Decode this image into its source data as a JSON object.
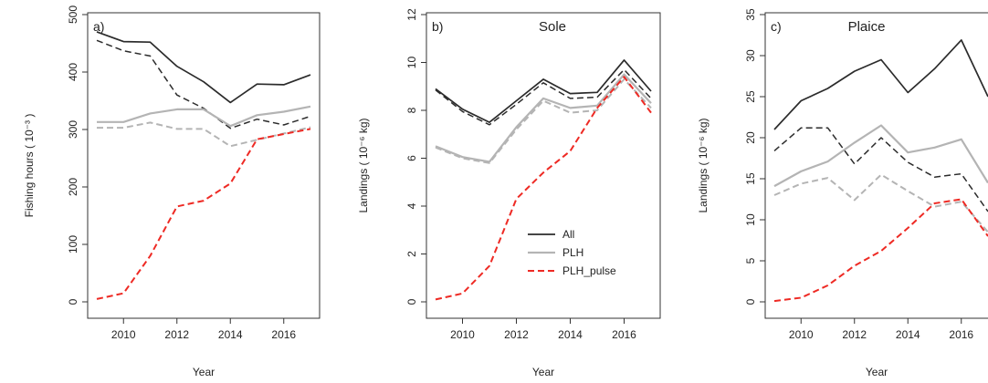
{
  "chart_data": [
    {
      "type": "line",
      "panel_label": "a)",
      "title": "",
      "xlabel": "Year",
      "ylabel": "Fishing hours ( 10⁻³ )",
      "xlim": [
        2009,
        2017
      ],
      "ylim": [
        0,
        500
      ],
      "xticks": [
        2010,
        2012,
        2014,
        2016
      ],
      "yticks": [
        0,
        100,
        200,
        300,
        400,
        500
      ],
      "x": [
        2009,
        2010,
        2011,
        2012,
        2013,
        2014,
        2015,
        2016,
        2017
      ],
      "series": [
        {
          "key": "all_total",
          "values": [
            470,
            453,
            452,
            410,
            383,
            347,
            379,
            378,
            395
          ]
        },
        {
          "key": "all_sub",
          "values": [
            455,
            437,
            428,
            360,
            337,
            302,
            318,
            308,
            323
          ]
        },
        {
          "key": "plh_total",
          "values": [
            313,
            313,
            328,
            335,
            335,
            306,
            325,
            331,
            340
          ]
        },
        {
          "key": "plh_sub",
          "values": [
            303,
            303,
            312,
            301,
            301,
            271,
            282,
            293,
            304
          ]
        },
        {
          "key": "pulse",
          "values": [
            5,
            15,
            80,
            166,
            176,
            206,
            283,
            292,
            301
          ]
        }
      ]
    },
    {
      "type": "line",
      "panel_label": "b)",
      "title": "Sole",
      "xlabel": "Year",
      "ylabel": "Landings ( 10⁻⁶ kg)",
      "xlim": [
        2009,
        2017
      ],
      "ylim": [
        0,
        12
      ],
      "xticks": [
        2010,
        2012,
        2014,
        2016
      ],
      "yticks": [
        0,
        2,
        4,
        6,
        8,
        10,
        12
      ],
      "x": [
        2009,
        2010,
        2011,
        2012,
        2013,
        2014,
        2015,
        2016,
        2017
      ],
      "series": [
        {
          "key": "all_total",
          "values": [
            8.9,
            8.05,
            7.5,
            8.4,
            9.3,
            8.7,
            8.75,
            10.1,
            8.8
          ]
        },
        {
          "key": "all_sub",
          "values": [
            8.85,
            7.95,
            7.4,
            8.25,
            9.15,
            8.5,
            8.55,
            9.7,
            8.5
          ]
        },
        {
          "key": "plh_total",
          "values": [
            6.5,
            6.05,
            5.85,
            7.3,
            8.5,
            8.1,
            8.2,
            9.5,
            8.3
          ]
        },
        {
          "key": "plh_sub",
          "values": [
            6.45,
            6.0,
            5.8,
            7.2,
            8.4,
            7.9,
            8.0,
            9.3,
            8.1
          ]
        },
        {
          "key": "pulse",
          "values": [
            0.1,
            0.35,
            1.5,
            4.3,
            5.4,
            6.3,
            8.1,
            9.4,
            7.9
          ]
        }
      ]
    },
    {
      "type": "line",
      "panel_label": "c)",
      "title": "Plaice",
      "xlabel": "Year",
      "ylabel": "Landings ( 10⁻⁶ kg)",
      "xlim": [
        2009,
        2017
      ],
      "ylim": [
        0,
        35
      ],
      "xticks": [
        2010,
        2012,
        2014,
        2016
      ],
      "yticks": [
        0,
        5,
        10,
        15,
        20,
        25,
        30,
        35
      ],
      "x": [
        2009,
        2010,
        2011,
        2012,
        2013,
        2014,
        2015,
        2016,
        2017
      ],
      "series": [
        {
          "key": "all_total",
          "values": [
            21.0,
            24.5,
            26.0,
            28.1,
            29.5,
            25.5,
            28.4,
            31.9,
            25.0
          ]
        },
        {
          "key": "all_sub",
          "values": [
            18.4,
            21.2,
            21.2,
            16.8,
            20.0,
            17.0,
            15.2,
            15.6,
            11.0
          ]
        },
        {
          "key": "plh_total",
          "values": [
            14.1,
            15.9,
            17.1,
            19.4,
            21.5,
            18.2,
            18.8,
            19.8,
            14.5
          ]
        },
        {
          "key": "plh_sub",
          "values": [
            13.0,
            14.4,
            15.1,
            12.4,
            15.5,
            13.5,
            11.6,
            12.2,
            8.5
          ]
        },
        {
          "key": "pulse",
          "values": [
            0.1,
            0.5,
            2.0,
            4.4,
            6.2,
            9.0,
            12.0,
            12.5,
            8.0
          ]
        }
      ]
    }
  ],
  "legend": {
    "position": "inside panel b, lower right",
    "entries": [
      {
        "label": "All",
        "key": "all_total"
      },
      {
        "label": "PLH",
        "key": "plh_total"
      },
      {
        "label": "PLH_pulse",
        "key": "pulse"
      }
    ]
  },
  "styles": {
    "all_total": {
      "color": "#2b2b2b",
      "dash": "",
      "width": 1.7
    },
    "all_sub": {
      "color": "#2b2b2b",
      "dash": "7 4",
      "width": 1.5
    },
    "plh_total": {
      "color": "#b4b4b4",
      "dash": "",
      "width": 2.2
    },
    "plh_sub": {
      "color": "#b4b4b4",
      "dash": "7 4",
      "width": 2.0
    },
    "pulse": {
      "color": "#ee2a24",
      "dash": "7 4",
      "width": 2.0
    }
  }
}
